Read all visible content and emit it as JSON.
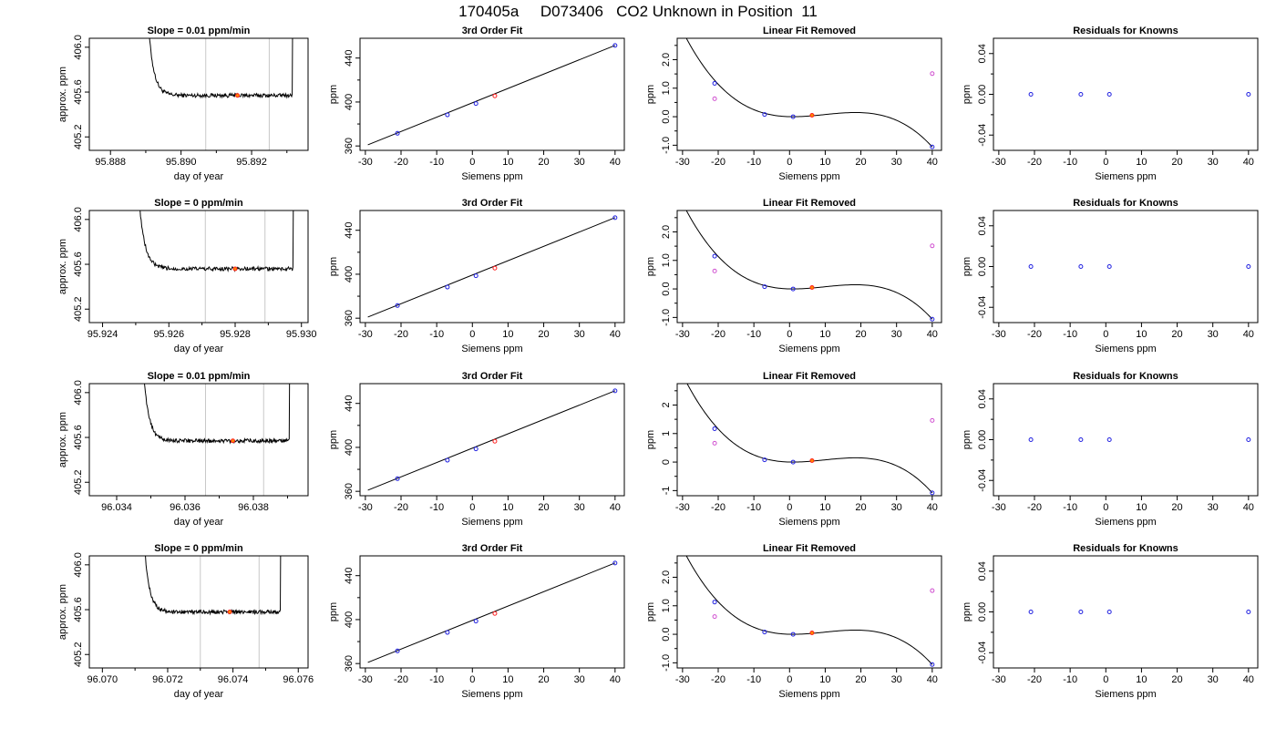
{
  "title": "170405a     D073406   CO2 Unknown in Position  11",
  "colors": {
    "frame": "#000000",
    "window_line": "#c8c8c8",
    "known": "#2020e0",
    "unknown": "#ff2020",
    "unknown_fill": "#ff8c00",
    "flagged": "#d050d0"
  },
  "chart_data": [
    {
      "row": 1,
      "panel": "timeseries",
      "type": "line",
      "title": "Slope =  0.01  ppm/min",
      "xlabel": "day of year",
      "ylabel": "approx. ppm",
      "xlim": [
        95.8874,
        95.8936
      ],
      "ylim": [
        405.08,
        406.08
      ],
      "xticks": [
        95.888,
        95.89,
        95.892
      ],
      "xtick_labels": [
        "95.888",
        "95.890",
        "95.892"
      ],
      "xminor": [
        95.889,
        95.891,
        95.893
      ],
      "yticks": [
        405.2,
        405.6,
        406.0
      ],
      "ytick_labels": [
        "405.2",
        "405.6",
        "406.0"
      ],
      "window": [
        95.8907,
        95.8925
      ],
      "t_start": 95.8889,
      "t_end": 95.8932,
      "level": 405.57,
      "marker": {
        "x": 95.8916,
        "y": 405.57
      }
    },
    {
      "row": 1,
      "panel": "fit",
      "type": "line",
      "title": "3rd Order Fit",
      "xlabel": "Siemens ppm",
      "ylabel": "ppm",
      "xlim": [
        -31.5,
        42.6
      ],
      "ylim": [
        356,
        458
      ],
      "xticks": [
        -30,
        -20,
        -10,
        0,
        10,
        20,
        30,
        40
      ],
      "xtick_labels": [
        "-30",
        "-20",
        "-10",
        "0",
        "10",
        "20",
        "30",
        "40"
      ],
      "yticks": [
        360,
        400,
        440
      ],
      "ytick_labels": [
        "360",
        "400",
        "440"
      ],
      "yminor": [
        380,
        420
      ],
      "line": [
        [
          -29.3,
          361
        ],
        [
          40,
          451.5
        ]
      ],
      "knowns": [
        [
          -21,
          371.5
        ],
        [
          -7,
          388.3
        ],
        [
          1,
          398.6
        ],
        [
          40,
          451.5
        ]
      ],
      "unknown": [
        [
          6.3,
          405.6
        ]
      ]
    },
    {
      "row": 1,
      "panel": "residual_fit",
      "type": "scatter",
      "title": "Linear Fit Removed",
      "xlabel": "Siemens ppm",
      "ylabel": "ppm",
      "xlim": [
        -31.5,
        42.6
      ],
      "ylim": [
        -1.18,
        2.75
      ],
      "xticks": [
        -30,
        -20,
        -10,
        0,
        10,
        20,
        30,
        40
      ],
      "xtick_labels": [
        "-30",
        "-20",
        "-10",
        "0",
        "10",
        "20",
        "30",
        "40"
      ],
      "yticks": [
        -1.0,
        0.0,
        1.0,
        2.0
      ],
      "ytick_labels": [
        "-1.0",
        "0.0",
        "1.0",
        "2.0"
      ],
      "yminor": [
        -0.5,
        0.5,
        1.5,
        2.5
      ],
      "cubic": {
        "x0": 1.0,
        "x1": 40.0,
        "y1": -1.06,
        "xmax": 18.5,
        "x_from": -29.3
      },
      "knowns": [
        [
          -21,
          1.17
        ],
        [
          -7,
          0.08
        ],
        [
          1,
          0.0
        ],
        [
          40,
          -1.06
        ]
      ],
      "flagged": [
        [
          -21,
          0.63
        ],
        [
          40,
          1.51
        ]
      ],
      "unknown": [
        [
          6.3,
          0.05
        ]
      ]
    },
    {
      "row": 1,
      "panel": "knowns_residuals",
      "type": "scatter",
      "title": "Residuals for Knowns",
      "xlabel": "Siemens ppm",
      "ylabel": "ppm",
      "xlim": [
        -31.5,
        42.6
      ],
      "ylim": [
        -0.055,
        0.055
      ],
      "xticks": [
        -30,
        -20,
        -10,
        0,
        10,
        20,
        30,
        40
      ],
      "xtick_labels": [
        "-30",
        "-20",
        "-10",
        "0",
        "10",
        "20",
        "30",
        "40"
      ],
      "yticks": [
        -0.04,
        0.0,
        0.04
      ],
      "ytick_labels": [
        "-0.04",
        "0.00",
        "0.04"
      ],
      "yminor": [
        -0.02,
        0.02
      ],
      "knowns": [
        [
          -21,
          0.0
        ],
        [
          -7,
          0.0
        ],
        [
          1,
          0.0
        ],
        [
          40,
          0.0
        ]
      ]
    },
    {
      "row": 2,
      "panel": "timeseries",
      "type": "line",
      "title": "Slope =  0  ppm/min",
      "xlabel": "day of year",
      "ylabel": "approx. ppm",
      "xlim": [
        95.9236,
        95.9302
      ],
      "ylim": [
        405.08,
        406.08
      ],
      "xticks": [
        95.924,
        95.926,
        95.928,
        95.93
      ],
      "xtick_labels": [
        "95.924",
        "95.926",
        "95.928",
        "95.930"
      ],
      "xminor": [
        95.925,
        95.927,
        95.929
      ],
      "yticks": [
        405.2,
        405.6,
        406.0
      ],
      "ytick_labels": [
        "405.2",
        "405.6",
        "406.0"
      ],
      "window": [
        95.9271,
        95.9289
      ],
      "t_start": 95.9249,
      "t_end": 95.9298,
      "level": 405.56,
      "marker": {
        "x": 95.928,
        "y": 405.56
      }
    },
    {
      "row": 2,
      "panel": "fit",
      "type": "line",
      "title": "3rd Order Fit",
      "xlabel": "Siemens ppm",
      "ylabel": "ppm",
      "xlim": [
        -31.5,
        42.6
      ],
      "ylim": [
        356,
        458
      ],
      "xticks": [
        -30,
        -20,
        -10,
        0,
        10,
        20,
        30,
        40
      ],
      "xtick_labels": [
        "-30",
        "-20",
        "-10",
        "0",
        "10",
        "20",
        "30",
        "40"
      ],
      "yticks": [
        360,
        400,
        440
      ],
      "ytick_labels": [
        "360",
        "400",
        "440"
      ],
      "yminor": [
        380,
        420
      ],
      "line": [
        [
          -29.3,
          361
        ],
        [
          40,
          451.5
        ]
      ],
      "knowns": [
        [
          -21,
          371.5
        ],
        [
          -7,
          388.3
        ],
        [
          1,
          398.6
        ],
        [
          40,
          451.5
        ]
      ],
      "unknown": [
        [
          6.3,
          405.6
        ]
      ]
    },
    {
      "row": 2,
      "panel": "residual_fit",
      "type": "scatter",
      "title": "Linear Fit Removed",
      "xlabel": "Siemens ppm",
      "ylabel": "ppm",
      "xlim": [
        -31.5,
        42.6
      ],
      "ylim": [
        -1.18,
        2.75
      ],
      "xticks": [
        -30,
        -20,
        -10,
        0,
        10,
        20,
        30,
        40
      ],
      "xtick_labels": [
        "-30",
        "-20",
        "-10",
        "0",
        "10",
        "20",
        "30",
        "40"
      ],
      "yticks": [
        -1.0,
        0.0,
        1.0,
        2.0
      ],
      "ytick_labels": [
        "-1.0",
        "0.0",
        "1.0",
        "2.0"
      ],
      "yminor": [
        -0.5,
        0.5,
        1.5,
        2.5
      ],
      "cubic": {
        "x0": 1.0,
        "x1": 40.0,
        "y1": -1.06,
        "xmax": 18.5,
        "x_from": -29.3
      },
      "knowns": [
        [
          -21,
          1.15
        ],
        [
          -7,
          0.08
        ],
        [
          1,
          0.0
        ],
        [
          40,
          -1.06
        ]
      ],
      "flagged": [
        [
          -21,
          0.63
        ],
        [
          40,
          1.51
        ]
      ],
      "unknown": [
        [
          6.3,
          0.05
        ]
      ]
    },
    {
      "row": 2,
      "panel": "knowns_residuals",
      "type": "scatter",
      "title": "Residuals for Knowns",
      "xlabel": "Siemens ppm",
      "ylabel": "ppm",
      "xlim": [
        -31.5,
        42.6
      ],
      "ylim": [
        -0.055,
        0.055
      ],
      "xticks": [
        -30,
        -20,
        -10,
        0,
        10,
        20,
        30,
        40
      ],
      "xtick_labels": [
        "-30",
        "-20",
        "-10",
        "0",
        "10",
        "20",
        "30",
        "40"
      ],
      "yticks": [
        -0.04,
        0.0,
        0.04
      ],
      "ytick_labels": [
        "-0.04",
        "0.00",
        "0.04"
      ],
      "yminor": [
        -0.02,
        0.02
      ],
      "knowns": [
        [
          -21,
          0.0
        ],
        [
          -7,
          0.0
        ],
        [
          1,
          0.0
        ],
        [
          40,
          0.0
        ]
      ]
    },
    {
      "row": 3,
      "panel": "timeseries",
      "type": "line",
      "title": "Slope =  0.01  ppm/min",
      "xlabel": "day of year",
      "ylabel": "approx. ppm",
      "xlim": [
        96.0332,
        96.0396
      ],
      "ylim": [
        405.08,
        406.08
      ],
      "xticks": [
        96.034,
        96.036,
        96.038
      ],
      "xtick_labels": [
        "96.034",
        "96.036",
        "96.038"
      ],
      "xminor": [
        96.035,
        96.037,
        96.039
      ],
      "yticks": [
        405.2,
        405.6,
        406.0
      ],
      "ytick_labels": [
        "405.2",
        "405.6",
        "406.0"
      ],
      "window": [
        96.0366,
        96.0383
      ],
      "t_start": 96.0346,
      "t_end": 96.0391,
      "level": 405.57,
      "marker": {
        "x": 96.0374,
        "y": 405.57
      }
    },
    {
      "row": 3,
      "panel": "fit",
      "type": "line",
      "title": "3rd Order Fit",
      "xlabel": "Siemens ppm",
      "ylabel": "ppm",
      "xlim": [
        -31.5,
        42.6
      ],
      "ylim": [
        356,
        458
      ],
      "xticks": [
        -30,
        -20,
        -10,
        0,
        10,
        20,
        30,
        40
      ],
      "xtick_labels": [
        "-30",
        "-20",
        "-10",
        "0",
        "10",
        "20",
        "30",
        "40"
      ],
      "yticks": [
        360,
        400,
        440
      ],
      "ytick_labels": [
        "360",
        "400",
        "440"
      ],
      "yminor": [
        380,
        420
      ],
      "line": [
        [
          -29.3,
          361
        ],
        [
          40,
          451.5
        ]
      ],
      "knowns": [
        [
          -21,
          371.5
        ],
        [
          -7,
          388.3
        ],
        [
          1,
          398.6
        ],
        [
          40,
          451.5
        ]
      ],
      "unknown": [
        [
          6.3,
          405.6
        ]
      ]
    },
    {
      "row": 3,
      "panel": "residual_fit",
      "type": "scatter",
      "title": "Linear Fit Removed",
      "xlabel": "Siemens ppm",
      "ylabel": "ppm",
      "xlim": [
        -31.5,
        42.6
      ],
      "ylim": [
        -1.18,
        2.75
      ],
      "xticks": [
        -30,
        -20,
        -10,
        0,
        10,
        20,
        30,
        40
      ],
      "xtick_labels": [
        "-30",
        "-20",
        "-10",
        "0",
        "10",
        "20",
        "30",
        "40"
      ],
      "yticks": [
        -1,
        0,
        1,
        2
      ],
      "ytick_labels": [
        "-1",
        "0",
        "1",
        "2"
      ],
      "yminor": [
        -0.5,
        0.5,
        1.5,
        2.5
      ],
      "cubic": {
        "x0": 1.0,
        "x1": 40.0,
        "y1": -1.08,
        "xmax": 18.5,
        "x_from": -29.3
      },
      "knowns": [
        [
          -21,
          1.17
        ],
        [
          -7,
          0.08
        ],
        [
          1,
          0.0
        ],
        [
          40,
          -1.08
        ]
      ],
      "flagged": [
        [
          -21,
          0.66
        ],
        [
          40,
          1.46
        ]
      ],
      "unknown": [
        [
          6.3,
          0.05
        ]
      ]
    },
    {
      "row": 3,
      "panel": "knowns_residuals",
      "type": "scatter",
      "title": "Residuals for Knowns",
      "xlabel": "Siemens ppm",
      "ylabel": "ppm",
      "xlim": [
        -31.5,
        42.6
      ],
      "ylim": [
        -0.055,
        0.055
      ],
      "xticks": [
        -30,
        -20,
        -10,
        0,
        10,
        20,
        30,
        40
      ],
      "xtick_labels": [
        "-30",
        "-20",
        "-10",
        "0",
        "10",
        "20",
        "30",
        "40"
      ],
      "yticks": [
        -0.04,
        0.0,
        0.04
      ],
      "ytick_labels": [
        "-0.04",
        "0.00",
        "0.04"
      ],
      "yminor": [
        -0.02,
        0.02
      ],
      "knowns": [
        [
          -21,
          0.0
        ],
        [
          -7,
          0.0
        ],
        [
          1,
          0.0
        ],
        [
          40,
          0.0
        ]
      ]
    },
    {
      "row": 4,
      "panel": "timeseries",
      "type": "line",
      "title": "Slope =  0  ppm/min",
      "xlabel": "day of year",
      "ylabel": "approx. ppm",
      "xlim": [
        96.0696,
        96.0763
      ],
      "ylim": [
        405.08,
        406.08
      ],
      "xticks": [
        96.07,
        96.072,
        96.074,
        96.076
      ],
      "xtick_labels": [
        "96.070",
        "96.072",
        "96.074",
        "96.076"
      ],
      "xminor": [
        96.071,
        96.073,
        96.075
      ],
      "yticks": [
        405.2,
        405.6,
        406.0
      ],
      "ytick_labels": [
        "405.2",
        "405.6",
        "406.0"
      ],
      "window": [
        96.073,
        96.0748
      ],
      "t_start": 96.0711,
      "t_end": 96.0755,
      "level": 405.58,
      "marker": {
        "x": 96.0739,
        "y": 405.58
      }
    },
    {
      "row": 4,
      "panel": "fit",
      "type": "line",
      "title": "3rd Order Fit",
      "xlabel": "Siemens ppm",
      "ylabel": "ppm",
      "xlim": [
        -31.5,
        42.6
      ],
      "ylim": [
        356,
        458
      ],
      "xticks": [
        -30,
        -20,
        -10,
        0,
        10,
        20,
        30,
        40
      ],
      "xtick_labels": [
        "-30",
        "-20",
        "-10",
        "0",
        "10",
        "20",
        "30",
        "40"
      ],
      "yticks": [
        360,
        400,
        440
      ],
      "ytick_labels": [
        "360",
        "400",
        "440"
      ],
      "yminor": [
        380,
        420
      ],
      "line": [
        [
          -29.3,
          361
        ],
        [
          40,
          451.5
        ]
      ],
      "knowns": [
        [
          -21,
          371.5
        ],
        [
          -7,
          388.3
        ],
        [
          1,
          398.6
        ],
        [
          40,
          451.5
        ]
      ],
      "unknown": [
        [
          6.3,
          405.6
        ]
      ]
    },
    {
      "row": 4,
      "panel": "residual_fit",
      "type": "scatter",
      "title": "Linear Fit Removed",
      "xlabel": "Siemens ppm",
      "ylabel": "ppm",
      "xlim": [
        -31.5,
        42.6
      ],
      "ylim": [
        -1.18,
        2.75
      ],
      "xticks": [
        -30,
        -20,
        -10,
        0,
        10,
        20,
        30,
        40
      ],
      "xtick_labels": [
        "-30",
        "-20",
        "-10",
        "0",
        "10",
        "20",
        "30",
        "40"
      ],
      "yticks": [
        -1.0,
        0.0,
        1.0,
        2.0
      ],
      "ytick_labels": [
        "-1.0",
        "0.0",
        "1.0",
        "2.0"
      ],
      "yminor": [
        -0.5,
        0.5,
        1.5,
        2.5
      ],
      "cubic": {
        "x0": 1.0,
        "x1": 40.0,
        "y1": -1.06,
        "xmax": 18.5,
        "x_from": -29.3
      },
      "knowns": [
        [
          -21,
          1.13
        ],
        [
          -7,
          0.08
        ],
        [
          1,
          0.0
        ],
        [
          40,
          -1.06
        ]
      ],
      "flagged": [
        [
          -21,
          0.62
        ],
        [
          40,
          1.53
        ]
      ],
      "unknown": [
        [
          6.3,
          0.05
        ]
      ]
    },
    {
      "row": 4,
      "panel": "knowns_residuals",
      "type": "scatter",
      "title": "Residuals for Knowns",
      "xlabel": "Siemens ppm",
      "ylabel": "ppm",
      "xlim": [
        -31.5,
        42.6
      ],
      "ylim": [
        -0.055,
        0.055
      ],
      "xticks": [
        -30,
        -20,
        -10,
        0,
        10,
        20,
        30,
        40
      ],
      "xtick_labels": [
        "-30",
        "-20",
        "-10",
        "0",
        "10",
        "20",
        "30",
        "40"
      ],
      "yticks": [
        -0.04,
        0.0,
        0.04
      ],
      "ytick_labels": [
        "-0.04",
        "0.00",
        "0.04"
      ],
      "yminor": [
        -0.02,
        0.02
      ],
      "knowns": [
        [
          -21,
          0.0
        ],
        [
          -7,
          0.0
        ],
        [
          1,
          0.0
        ],
        [
          40,
          0.0
        ]
      ]
    }
  ]
}
